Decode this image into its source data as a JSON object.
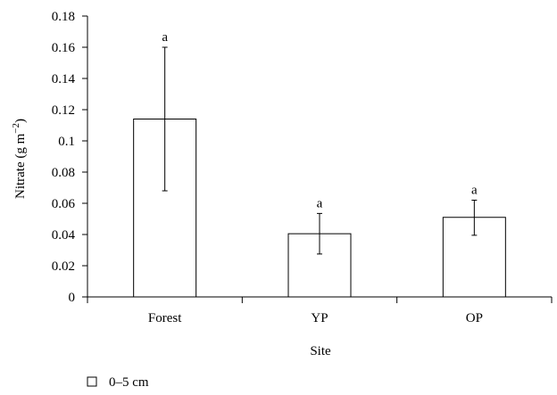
{
  "chart_data": {
    "type": "bar",
    "categories": [
      "Forest",
      "YP",
      "OP"
    ],
    "series": [
      {
        "name": "0–5 cm",
        "values": [
          0.114,
          0.0405,
          0.051
        ],
        "error_low": [
          0.068,
          0.0275,
          0.0395
        ],
        "error_high": [
          0.16,
          0.0535,
          0.062
        ],
        "labels": [
          "a",
          "a",
          "a"
        ]
      }
    ],
    "title": "",
    "xlabel": "Site",
    "ylabel_main": "Nitrate (g m",
    "ylabel_exp": "−2",
    "ylabel_close": ")",
    "ylim": [
      0,
      0.18
    ],
    "yticks": [
      0,
      0.02,
      0.04,
      0.06,
      0.08,
      0.1,
      0.12,
      0.14,
      0.16,
      0.18
    ],
    "ytick_labels": [
      "0",
      "0.02",
      "0.04",
      "0.06",
      "0.08",
      "0.1",
      "0.12",
      "0.14",
      "0.16",
      "0.18"
    ],
    "grid": false,
    "legend": "bottom-left",
    "colors": {
      "bar_fill": "#ffffff",
      "bar_stroke": "#000000",
      "axis": "#000000"
    }
  }
}
